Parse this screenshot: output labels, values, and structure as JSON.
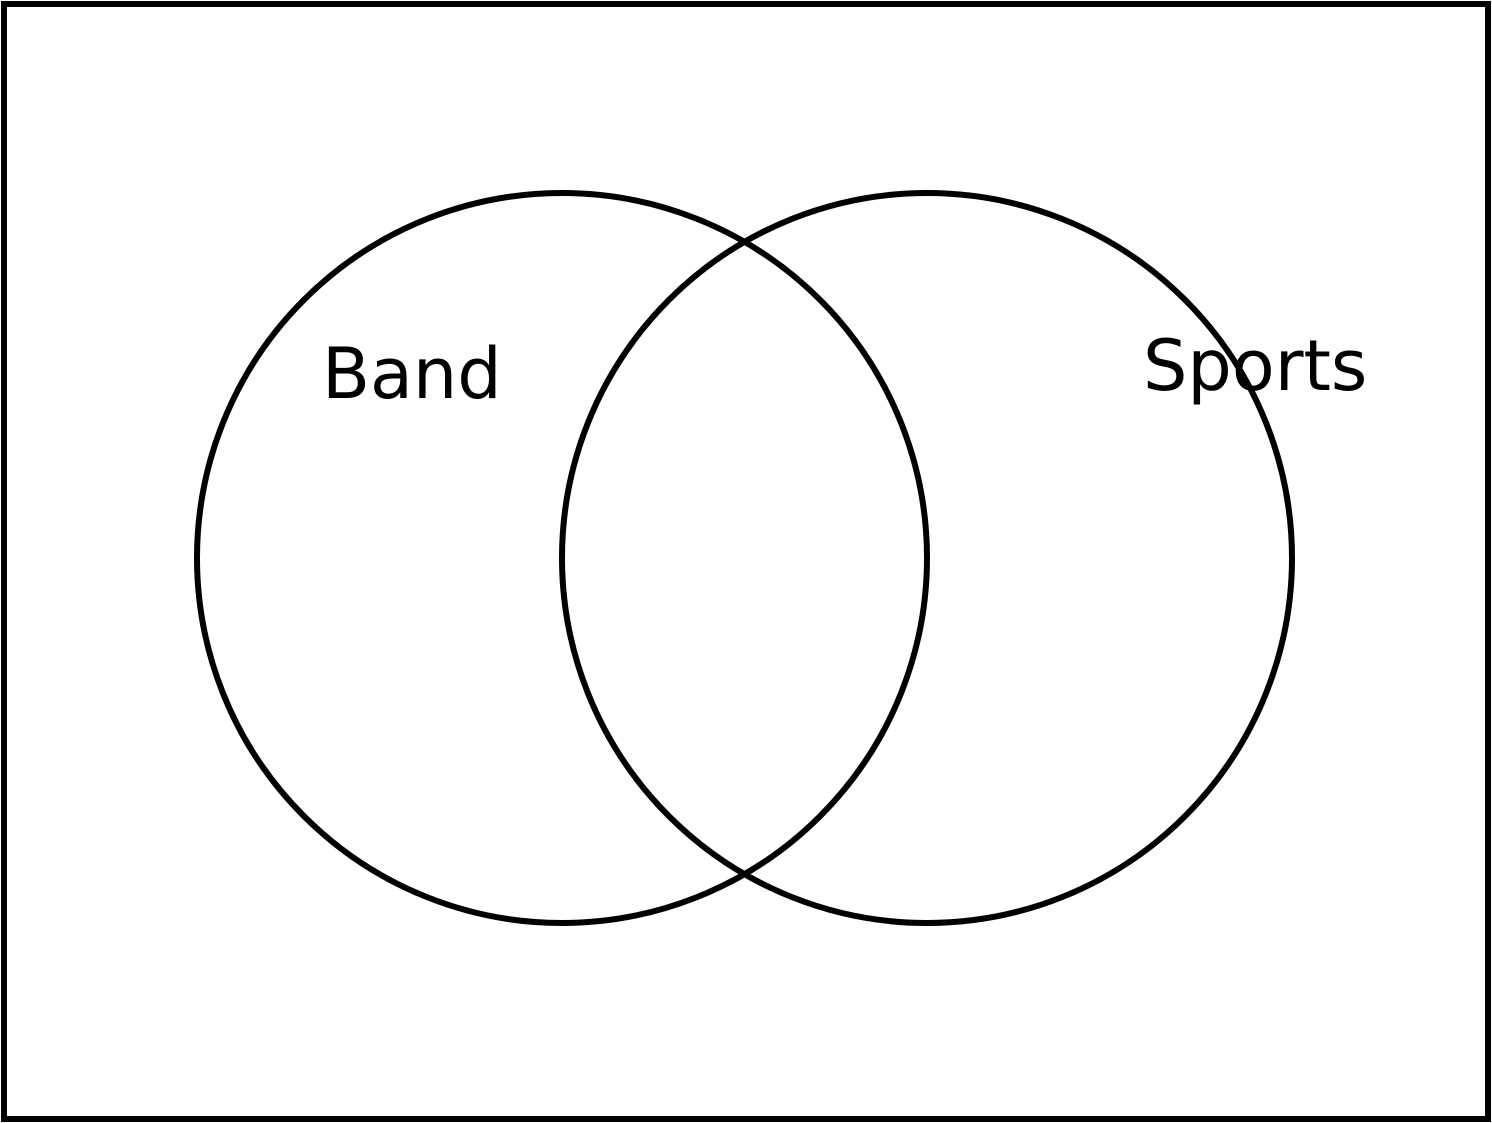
{
  "diagram": {
    "type": "venn",
    "line_color": "#000000",
    "background_color": "#ffffff",
    "sets": [
      {
        "label": "Band"
      },
      {
        "label": "Sports"
      }
    ]
  }
}
